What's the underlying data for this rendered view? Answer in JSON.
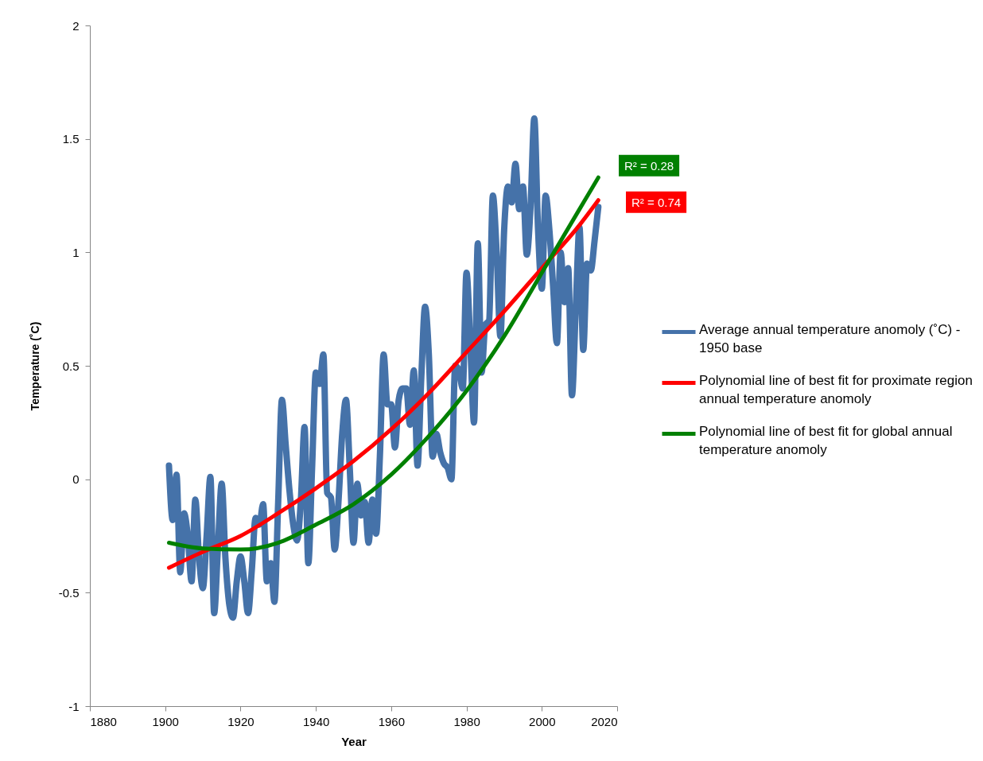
{
  "chart_data": {
    "type": "line",
    "xlabel": "Year",
    "ylabel": "Temperature (˚C)",
    "xlim": [
      1880,
      2020
    ],
    "xticks": [
      1880,
      1900,
      1920,
      1940,
      1960,
      1980,
      2000,
      2020
    ],
    "ylim": [
      -1,
      2
    ],
    "yticks": [
      -1,
      -0.5,
      0,
      0.5,
      1,
      1.5,
      2
    ],
    "legend": "right",
    "annotations": [
      "R² = 0.28",
      "R² = 0.74"
    ],
    "x": [
      1901,
      1902,
      1903,
      1904,
      1905,
      1906,
      1907,
      1908,
      1909,
      1910,
      1911,
      1912,
      1913,
      1914,
      1915,
      1916,
      1917,
      1918,
      1919,
      1920,
      1921,
      1922,
      1923,
      1924,
      1925,
      1926,
      1927,
      1928,
      1929,
      1930,
      1931,
      1932,
      1933,
      1934,
      1935,
      1936,
      1937,
      1938,
      1939,
      1940,
      1941,
      1942,
      1943,
      1944,
      1945,
      1946,
      1947,
      1948,
      1949,
      1950,
      1951,
      1952,
      1953,
      1954,
      1955,
      1956,
      1957,
      1958,
      1959,
      1960,
      1961,
      1962,
      1963,
      1964,
      1965,
      1966,
      1967,
      1968,
      1969,
      1970,
      1971,
      1972,
      1973,
      1974,
      1975,
      1976,
      1977,
      1978,
      1979,
      1980,
      1981,
      1982,
      1983,
      1984,
      1985,
      1986,
      1987,
      1988,
      1989,
      1990,
      1991,
      1992,
      1993,
      1994,
      1995,
      1996,
      1997,
      1998,
      1999,
      2000,
      2001,
      2002,
      2003,
      2004,
      2005,
      2006,
      2007,
      2008,
      2009,
      2010,
      2011,
      2012,
      2013,
      2014,
      2015
    ],
    "series": [
      {
        "name": "Average annual temperature anomoly (˚C) - 1950 base",
        "color": "#4572a9",
        "values": [
          0.06,
          -0.18,
          0.02,
          -0.41,
          -0.15,
          -0.25,
          -0.45,
          -0.09,
          -0.35,
          -0.48,
          -0.25,
          0.01,
          -0.59,
          -0.3,
          -0.02,
          -0.35,
          -0.55,
          -0.61,
          -0.45,
          -0.34,
          -0.45,
          -0.59,
          -0.4,
          -0.17,
          -0.2,
          -0.11,
          -0.45,
          -0.37,
          -0.54,
          -0.1,
          0.35,
          0.15,
          -0.05,
          -0.2,
          -0.27,
          -0.1,
          0.23,
          -0.37,
          0.05,
          0.47,
          0.42,
          0.55,
          -0.06,
          -0.08,
          -0.31,
          -0.1,
          0.2,
          0.35,
          0.05,
          -0.28,
          -0.02,
          -0.16,
          -0.1,
          -0.28,
          -0.09,
          -0.24,
          0.1,
          0.55,
          0.33,
          0.33,
          0.14,
          0.35,
          0.4,
          0.4,
          0.24,
          0.48,
          0.06,
          0.45,
          0.76,
          0.55,
          0.1,
          0.2,
          0.12,
          0.07,
          0.05,
          0.0,
          0.5,
          0.48,
          0.4,
          0.91,
          0.6,
          0.25,
          1.04,
          0.47,
          0.68,
          0.7,
          1.25,
          1.0,
          0.63,
          1.1,
          1.29,
          1.22,
          1.39,
          1.19,
          1.29,
          0.99,
          1.2,
          1.59,
          1.1,
          0.84,
          1.25,
          1.1,
          0.85,
          0.6,
          1.0,
          0.78,
          0.93,
          0.37,
          0.75,
          1.11,
          0.57,
          0.95,
          0.92,
          1.05,
          1.2
        ]
      },
      {
        "name": "Polynomial line of best fit for proximate region annual temperature anomoly",
        "color": "#ff0000",
        "type": "line",
        "x": [
          1901,
          1910,
          1920,
          1930,
          1940,
          1950,
          1960,
          1970,
          1980,
          1990,
          2000,
          2010,
          2015
        ],
        "values": [
          -0.39,
          -0.32,
          -0.25,
          -0.15,
          -0.04,
          0.08,
          0.22,
          0.38,
          0.56,
          0.74,
          0.93,
          1.12,
          1.23
        ]
      },
      {
        "name": "Polynomial line of best fit for global annual temperature anomoly",
        "color": "#008000",
        "type": "line",
        "x": [
          1901,
          1910,
          1920,
          1930,
          1940,
          1950,
          1960,
          1970,
          1980,
          1990,
          2000,
          2010,
          2015
        ],
        "values": [
          -0.28,
          -0.305,
          -0.31,
          -0.28,
          -0.2,
          -0.11,
          0.02,
          0.19,
          0.39,
          0.63,
          0.91,
          1.19,
          1.33
        ]
      }
    ]
  }
}
